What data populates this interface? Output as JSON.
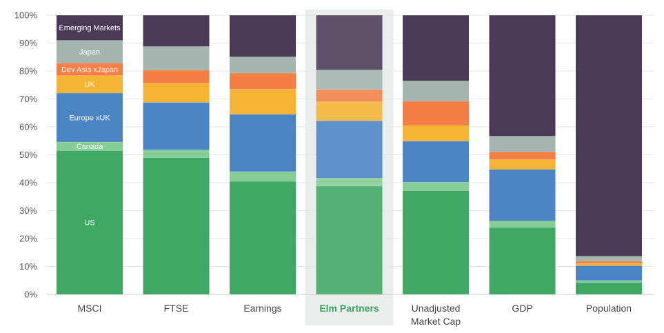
{
  "chart_data": {
    "type": "bar",
    "stacked": true,
    "normalized_percent": true,
    "categories": [
      "MSCI",
      "FTSE",
      "Earnings",
      "Elm Partners",
      "Unadjusted Market Cap",
      "GDP",
      "Population"
    ],
    "category_lines": [
      [
        "MSCI"
      ],
      [
        "FTSE"
      ],
      [
        "Earnings"
      ],
      [
        "Elm Partners"
      ],
      [
        "Unadjusted",
        "Market Cap"
      ],
      [
        "GDP"
      ],
      [
        "Population"
      ]
    ],
    "highlight_category": "Elm Partners",
    "highlight_color": "#3aa35f",
    "series": [
      {
        "name": "US",
        "color": "#3ea864",
        "values": [
          51.5,
          49.0,
          40.5,
          38.8,
          37.2,
          24.0,
          4.3
        ]
      },
      {
        "name": "Canada",
        "color": "#85cc96",
        "values": [
          3.1,
          2.8,
          3.5,
          2.9,
          3.0,
          2.3,
          0.7
        ]
      },
      {
        "name": "Europe xUK",
        "color": "#4a84c4",
        "values": [
          17.5,
          17.0,
          20.5,
          20.5,
          14.7,
          18.5,
          5.3
        ]
      },
      {
        "name": "UK",
        "color": "#f5b434",
        "values": [
          6.3,
          6.8,
          9.0,
          6.8,
          5.5,
          3.5,
          0.8
        ]
      },
      {
        "name": "Dev Asia xJapan",
        "color": "#f47f44",
        "values": [
          4.5,
          4.7,
          5.8,
          4.4,
          8.8,
          2.8,
          0.8
        ]
      },
      {
        "name": "Japan",
        "color": "#a3b5ae",
        "values": [
          8.1,
          8.5,
          5.8,
          7.0,
          7.3,
          5.6,
          1.8
        ]
      },
      {
        "name": "Emerging Markets",
        "color": "#4a3a57",
        "values": [
          9.0,
          11.2,
          14.9,
          19.6,
          23.5,
          43.3,
          86.3
        ]
      }
    ],
    "segment_labels_category": "MSCI",
    "yticks": [
      "0%",
      "10%",
      "20%",
      "30%",
      "40%",
      "50%",
      "60%",
      "70%",
      "80%",
      "90%",
      "100%"
    ],
    "ylim": [
      0,
      100
    ],
    "grid": true,
    "legend": "none"
  }
}
